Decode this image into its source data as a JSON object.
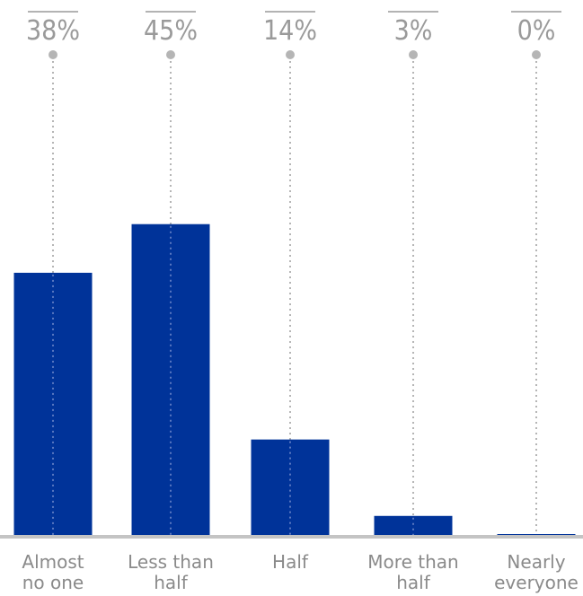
{
  "chart_data": {
    "type": "bar",
    "title": "",
    "xlabel": "",
    "ylabel": "",
    "categories": [
      [
        "Almost",
        "no one"
      ],
      [
        "Less than",
        "half"
      ],
      [
        "Half"
      ],
      [
        "More than",
        "half"
      ],
      [
        "Nearly",
        "everyone"
      ]
    ],
    "values": [
      38,
      45,
      14,
      3,
      0
    ],
    "value_labels": [
      "38%",
      "45%",
      "14%",
      "3%",
      "0%"
    ],
    "unit": "%",
    "ylim": [
      0,
      73
    ],
    "grid": false,
    "legend": "none",
    "colors": {
      "bar": "#003399",
      "label": "#9a9a9a",
      "leader": "#b5b5b5",
      "baseline": "#c4c4c4"
    }
  }
}
